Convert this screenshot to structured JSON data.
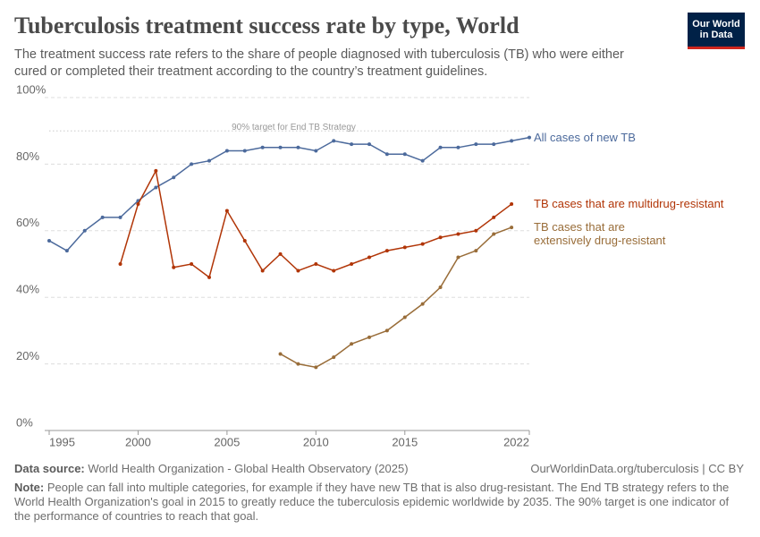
{
  "chart_data": {
    "type": "line",
    "title": "Tuberculosis treatment success rate by type, World",
    "subtitle": "The treatment success rate refers to the share of people diagnosed with tuberculosis (TB) who were either cured or completed their treatment according to the country’s treatment guidelines.",
    "logo": [
      "Our World",
      "in Data"
    ],
    "x": [
      1995,
      1996,
      1997,
      1998,
      1999,
      2000,
      2001,
      2002,
      2003,
      2004,
      2005,
      2006,
      2007,
      2008,
      2009,
      2010,
      2011,
      2012,
      2013,
      2014,
      2015,
      2016,
      2017,
      2018,
      2019,
      2020,
      2021,
      2022
    ],
    "series": [
      {
        "name": "All cases of new TB",
        "color": "#4c6a9c",
        "values": [
          57,
          54,
          60,
          64,
          64,
          69,
          73,
          76,
          80,
          81,
          84,
          84,
          85,
          85,
          85,
          84,
          87,
          86,
          86,
          83,
          83,
          81,
          85,
          85,
          86,
          86,
          87,
          88
        ]
      },
      {
        "name": "TB cases that are multidrug-resistant",
        "color": "#b13507",
        "values": [
          null,
          null,
          null,
          null,
          50,
          68,
          78,
          49,
          50,
          46,
          66,
          57,
          48,
          53,
          48,
          50,
          48,
          50,
          52,
          54,
          55,
          56,
          58,
          59,
          60,
          64,
          68,
          null
        ]
      },
      {
        "name": "TB cases that are extensively drug-resistant",
        "color": "#996d39",
        "values": [
          null,
          null,
          null,
          null,
          null,
          null,
          null,
          null,
          null,
          null,
          null,
          null,
          null,
          23,
          20,
          19,
          22,
          26,
          28,
          30,
          34,
          38,
          43,
          52,
          54,
          59,
          61,
          null
        ]
      }
    ],
    "xlim": [
      1995,
      2022
    ],
    "xticks": [
      1995,
      2000,
      2005,
      2010,
      2015,
      2022
    ],
    "ylim": [
      0,
      100
    ],
    "yticks": [
      {
        "value": 0,
        "label": "0%"
      },
      {
        "value": 20,
        "label": "20%"
      },
      {
        "value": 40,
        "label": "40%"
      },
      {
        "value": 60,
        "label": "60%"
      },
      {
        "value": 80,
        "label": "80%"
      },
      {
        "value": 100,
        "label": "100%"
      }
    ],
    "grid": true,
    "target": {
      "value": 90,
      "label": "90% target for End TB Strategy"
    },
    "source_label": "Data source:",
    "source": "World Health Organization - Global Health Observatory (2025)",
    "url": "OurWorldinData.org/tuberculosis | CC BY",
    "note_label": "Note:",
    "note": "People can fall into multiple categories, for example if they have new TB that is also drug-resistant. The End TB strategy refers to the World Health Organization's goal in 2015 to greatly reduce the tuberculosis epidemic worldwide by 2035. The 90% target is one indicator of the performance of countries to reach that goal."
  }
}
